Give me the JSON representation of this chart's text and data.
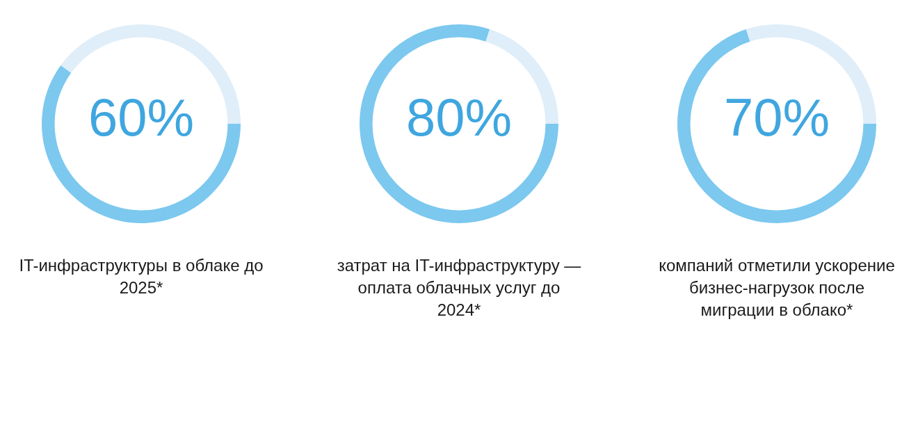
{
  "chart_data": [
    {
      "type": "donut",
      "title": "IT-инфраструктуры в облаке до 2025*",
      "categories": [
        null,
        null
      ],
      "values": [
        60,
        40
      ],
      "colors": [
        "#7cc8ef",
        "#dfeef9"
      ],
      "annotations": [
        "60%"
      ]
    },
    {
      "type": "donut",
      "title": "затрат на IT-инфраструктуру — оплата облачных услуг до 2024*",
      "categories": [
        null,
        null
      ],
      "values": [
        80,
        20
      ],
      "colors": [
        "#7cc8ef",
        "#dfeef9"
      ],
      "annotations": [
        "80%"
      ]
    },
    {
      "type": "donut",
      "title": "компаний отметили ускорение бизнес-нагрузок после миграции в облако*",
      "categories": [
        null,
        null
      ],
      "values": [
        70,
        30
      ],
      "colors": [
        "#7cc8ef",
        "#dfeef9"
      ],
      "annotations": [
        "70%"
      ]
    }
  ]
}
